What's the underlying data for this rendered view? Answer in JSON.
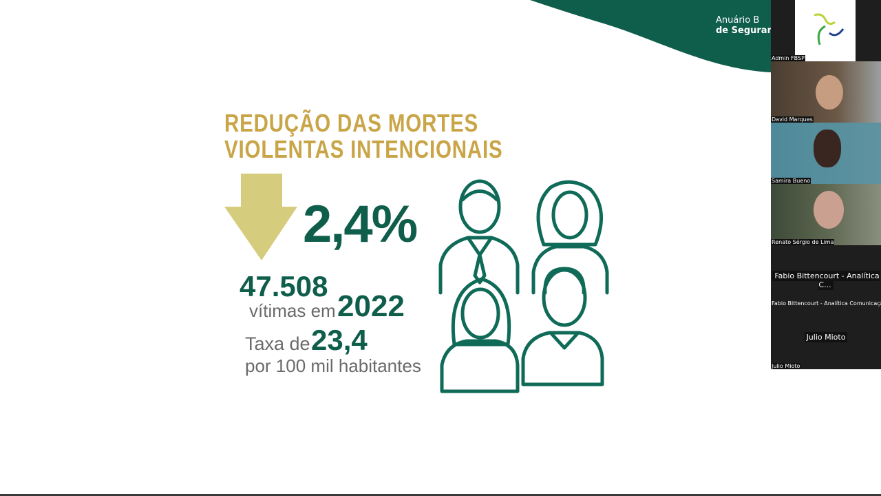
{
  "slide": {
    "header_line1": "Anuário B",
    "header_line2": "de Segurança",
    "title_line1": "REDUÇÃO DAS MORTES",
    "title_line2": "VIOLENTAS INTENCIONAIS",
    "percentage": "2,4%",
    "arrow_icon": "down-arrow-icon",
    "victims": "47.508",
    "victims_label": "vítimas em",
    "year": "2022",
    "rate_label": "Taxa de",
    "rate": "23,4",
    "rate_unit": "por 100 mil habitantes",
    "colors": {
      "gold": "#c9a548",
      "green": "#0f5d4b",
      "arrow": "#d5cc7e"
    }
  },
  "participants": [
    {
      "name": "Admin FBSP"
    },
    {
      "name": "David Marques"
    },
    {
      "name": "Samira Bueno"
    },
    {
      "name": "Renato Sérgio de Lima"
    },
    {
      "name": "Fabio Bittencourt - Analítica Comunicação",
      "display": "Fabio Bittencourt - Analítica C..."
    },
    {
      "name": "Julio Mioto",
      "display": "Julio Mioto"
    }
  ]
}
